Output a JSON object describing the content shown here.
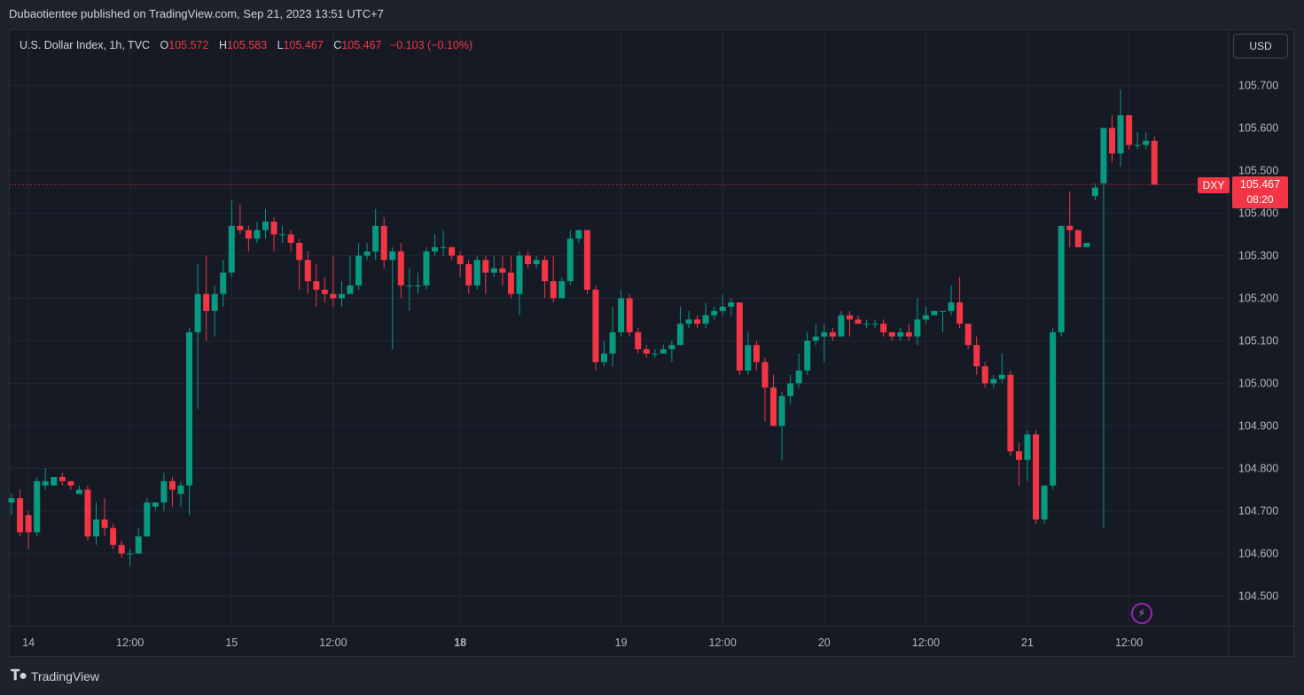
{
  "header": {
    "published_line": "Dubaotientee published on TradingView.com, Sep 21, 2023 13:51 UTC+7"
  },
  "legend": {
    "symbol": "U.S. Dollar Index, 1h, TVC",
    "o_label": "O",
    "o_value": "105.572",
    "h_label": "H",
    "h_value": "105.583",
    "l_label": "L",
    "l_value": "105.467",
    "c_label": "C",
    "c_value": "105.467",
    "change": "−0.103 (−0.10%)"
  },
  "toolbar": {
    "currency": "USD"
  },
  "price_tag": {
    "symbol": "DXY",
    "price": "105.467",
    "countdown": "08:20"
  },
  "footer": {
    "brand": "TradingView"
  },
  "icons": {
    "logo": "tradingview-logo-icon",
    "lightning": "lightning-icon"
  },
  "colors": {
    "up": "#089981",
    "down": "#f23645",
    "background": "#161a25",
    "grid": "#232734"
  },
  "chart_data": {
    "type": "candlestick",
    "title": "U.S. Dollar Index, 1h, TVC",
    "ylim": [
      104.43,
      105.83
    ],
    "y_ticks": [
      "105.700",
      "105.600",
      "105.500",
      "105.400",
      "105.300",
      "105.200",
      "105.100",
      "105.000",
      "104.900",
      "104.800",
      "104.700",
      "104.600",
      "104.500"
    ],
    "x_ticks": [
      {
        "label": "14",
        "index": 2
      },
      {
        "label": "12:00",
        "index": 14
      },
      {
        "label": "15",
        "index": 26
      },
      {
        "label": "12:00",
        "index": 38
      },
      {
        "label": "18",
        "index": 53
      },
      {
        "label": "19",
        "index": 72
      },
      {
        "label": "12:00",
        "index": 84
      },
      {
        "label": "20",
        "index": 96
      },
      {
        "label": "12:00",
        "index": 108
      },
      {
        "label": "21",
        "index": 120
      },
      {
        "label": "12:00",
        "index": 132
      }
    ],
    "last_price": 105.467,
    "candles": [
      [
        104.72,
        104.73,
        104.69,
        104.74
      ],
      [
        104.73,
        104.65,
        104.64,
        104.75
      ],
      [
        104.69,
        104.65,
        104.61,
        104.7
      ],
      [
        104.65,
        104.77,
        104.64,
        104.78
      ],
      [
        104.76,
        104.77,
        104.75,
        104.8
      ],
      [
        104.76,
        104.78,
        104.76,
        104.78
      ],
      [
        104.78,
        104.77,
        104.76,
        104.79
      ],
      [
        104.77,
        104.76,
        104.75,
        104.77
      ],
      [
        104.74,
        104.75,
        104.74,
        104.76
      ],
      [
        104.75,
        104.64,
        104.63,
        104.76
      ],
      [
        104.64,
        104.68,
        104.62,
        104.72
      ],
      [
        104.68,
        104.66,
        104.64,
        104.73
      ],
      [
        104.66,
        104.62,
        104.61,
        104.67
      ],
      [
        104.62,
        104.6,
        104.59,
        104.63
      ],
      [
        104.6,
        104.6,
        104.57,
        104.61
      ],
      [
        104.6,
        104.64,
        104.6,
        104.66
      ],
      [
        104.64,
        104.72,
        104.64,
        104.73
      ],
      [
        104.71,
        104.72,
        104.7,
        104.72
      ],
      [
        104.72,
        104.77,
        104.7,
        104.79
      ],
      [
        104.77,
        104.75,
        104.71,
        104.78
      ],
      [
        104.74,
        104.76,
        104.71,
        104.77
      ],
      [
        104.76,
        105.12,
        104.69,
        105.13
      ],
      [
        105.12,
        105.21,
        104.94,
        105.28
      ],
      [
        105.21,
        105.17,
        105.1,
        105.3
      ],
      [
        105.17,
        105.21,
        105.11,
        105.23
      ],
      [
        105.21,
        105.26,
        105.18,
        105.29
      ],
      [
        105.26,
        105.37,
        105.25,
        105.43
      ],
      [
        105.37,
        105.36,
        105.35,
        105.42
      ],
      [
        105.36,
        105.34,
        105.31,
        105.37
      ],
      [
        105.34,
        105.36,
        105.33,
        105.38
      ],
      [
        105.36,
        105.38,
        105.34,
        105.41
      ],
      [
        105.38,
        105.35,
        105.31,
        105.39
      ],
      [
        105.35,
        105.35,
        105.33,
        105.37
      ],
      [
        105.35,
        105.33,
        105.31,
        105.36
      ],
      [
        105.33,
        105.29,
        105.22,
        105.34
      ],
      [
        105.29,
        105.24,
        105.21,
        105.31
      ],
      [
        105.24,
        105.22,
        105.18,
        105.28
      ],
      [
        105.22,
        105.21,
        105.19,
        105.25
      ],
      [
        105.21,
        105.2,
        105.18,
        105.3
      ],
      [
        105.2,
        105.21,
        105.18,
        105.24
      ],
      [
        105.21,
        105.23,
        105.21,
        105.3
      ],
      [
        105.23,
        105.3,
        105.22,
        105.33
      ],
      [
        105.3,
        105.31,
        105.29,
        105.33
      ],
      [
        105.31,
        105.37,
        105.29,
        105.41
      ],
      [
        105.37,
        105.29,
        105.27,
        105.39
      ],
      [
        105.29,
        105.31,
        105.08,
        105.32
      ],
      [
        105.31,
        105.23,
        105.2,
        105.33
      ],
      [
        105.23,
        105.23,
        105.17,
        105.27
      ],
      [
        105.23,
        105.23,
        105.21,
        105.26
      ],
      [
        105.23,
        105.31,
        105.22,
        105.32
      ],
      [
        105.31,
        105.32,
        105.3,
        105.35
      ],
      [
        105.32,
        105.32,
        105.3,
        105.36
      ],
      [
        105.32,
        105.3,
        105.29,
        105.31
      ],
      [
        105.3,
        105.28,
        105.25,
        105.31
      ],
      [
        105.28,
        105.23,
        105.21,
        105.29
      ],
      [
        105.23,
        105.29,
        105.22,
        105.3
      ],
      [
        105.29,
        105.26,
        105.21,
        105.3
      ],
      [
        105.26,
        105.27,
        105.25,
        105.3
      ],
      [
        105.27,
        105.26,
        105.23,
        105.3
      ],
      [
        105.26,
        105.21,
        105.2,
        105.3
      ],
      [
        105.21,
        105.3,
        105.16,
        105.31
      ],
      [
        105.3,
        105.28,
        105.27,
        105.31
      ],
      [
        105.28,
        105.29,
        105.27,
        105.3
      ],
      [
        105.29,
        105.24,
        105.2,
        105.3
      ],
      [
        105.24,
        105.2,
        105.19,
        105.3
      ],
      [
        105.2,
        105.24,
        105.2,
        105.25
      ],
      [
        105.24,
        105.34,
        105.23,
        105.36
      ],
      [
        105.34,
        105.36,
        105.33,
        105.36
      ],
      [
        105.36,
        105.22,
        105.21,
        105.36
      ],
      [
        105.22,
        105.05,
        105.03,
        105.23
      ],
      [
        105.05,
        105.07,
        105.04,
        105.1
      ],
      [
        105.07,
        105.12,
        105.04,
        105.18
      ],
      [
        105.12,
        105.2,
        105.11,
        105.22
      ],
      [
        105.2,
        105.12,
        105.11,
        105.21
      ],
      [
        105.12,
        105.08,
        105.07,
        105.13
      ],
      [
        105.08,
        105.07,
        105.06,
        105.09
      ],
      [
        105.07,
        105.07,
        105.06,
        105.08
      ],
      [
        105.07,
        105.08,
        105.07,
        105.09
      ],
      [
        105.08,
        105.09,
        105.05,
        105.1
      ],
      [
        105.09,
        105.14,
        105.09,
        105.18
      ],
      [
        105.14,
        105.15,
        105.13,
        105.17
      ],
      [
        105.15,
        105.14,
        105.13,
        105.16
      ],
      [
        105.14,
        105.16,
        105.13,
        105.19
      ],
      [
        105.16,
        105.17,
        105.15,
        105.18
      ],
      [
        105.17,
        105.18,
        105.16,
        105.21
      ],
      [
        105.18,
        105.19,
        105.16,
        105.2
      ],
      [
        105.19,
        105.03,
        105.02,
        105.19
      ],
      [
        105.03,
        105.09,
        105.02,
        105.12
      ],
      [
        105.09,
        105.05,
        105.03,
        105.1
      ],
      [
        105.05,
        104.99,
        104.91,
        105.06
      ],
      [
        104.99,
        104.9,
        104.9,
        105.02
      ],
      [
        104.9,
        104.97,
        104.82,
        104.98
      ],
      [
        104.97,
        105.0,
        104.95,
        105.02
      ],
      [
        105.0,
        105.03,
        104.99,
        105.07
      ],
      [
        105.03,
        105.1,
        105.02,
        105.12
      ],
      [
        105.1,
        105.11,
        105.09,
        105.14
      ],
      [
        105.11,
        105.12,
        105.05,
        105.14
      ],
      [
        105.12,
        105.11,
        105.1,
        105.13
      ],
      [
        105.11,
        105.16,
        105.11,
        105.17
      ],
      [
        105.16,
        105.15,
        105.11,
        105.17
      ],
      [
        105.15,
        105.14,
        105.14,
        105.16
      ],
      [
        105.14,
        105.14,
        105.13,
        105.15
      ],
      [
        105.14,
        105.14,
        105.13,
        105.15
      ],
      [
        105.14,
        105.12,
        105.11,
        105.15
      ],
      [
        105.12,
        105.11,
        105.1,
        105.12
      ],
      [
        105.11,
        105.12,
        105.1,
        105.13
      ],
      [
        105.12,
        105.11,
        105.1,
        105.14
      ],
      [
        105.11,
        105.15,
        105.09,
        105.2
      ],
      [
        105.15,
        105.16,
        105.14,
        105.18
      ],
      [
        105.16,
        105.17,
        105.16,
        105.17
      ],
      [
        105.17,
        105.17,
        105.12,
        105.17
      ],
      [
        105.17,
        105.19,
        105.16,
        105.23
      ],
      [
        105.19,
        105.14,
        105.13,
        105.25
      ],
      [
        105.14,
        105.09,
        105.08,
        105.14
      ],
      [
        105.09,
        105.04,
        105.02,
        105.11
      ],
      [
        105.04,
        105.0,
        104.99,
        105.05
      ],
      [
        105.0,
        105.01,
        104.99,
        105.02
      ],
      [
        105.01,
        105.02,
        105.0,
        105.07
      ],
      [
        105.02,
        104.84,
        104.83,
        105.03
      ],
      [
        104.84,
        104.82,
        104.76,
        104.86
      ],
      [
        104.82,
        104.88,
        104.77,
        104.89
      ],
      [
        104.88,
        104.68,
        104.67,
        104.89
      ],
      [
        104.68,
        104.76,
        104.67,
        104.76
      ],
      [
        104.76,
        105.12,
        104.75,
        105.13
      ],
      [
        105.12,
        105.37,
        105.11,
        105.37
      ],
      [
        105.37,
        105.36,
        105.32,
        105.45
      ],
      [
        105.36,
        105.32,
        105.32,
        105.36
      ],
      [
        105.32,
        105.33,
        105.32,
        105.33
      ],
      [
        105.44,
        105.46,
        105.43,
        105.47
      ],
      [
        105.47,
        105.6,
        104.66,
        105.6
      ],
      [
        105.6,
        105.54,
        105.52,
        105.63
      ],
      [
        105.54,
        105.63,
        105.51,
        105.69
      ],
      [
        105.63,
        105.56,
        105.55,
        105.63
      ],
      [
        105.56,
        105.56,
        105.55,
        105.59
      ],
      [
        105.56,
        105.57,
        105.55,
        105.59
      ],
      [
        105.57,
        105.467,
        105.467,
        105.58
      ]
    ]
  }
}
